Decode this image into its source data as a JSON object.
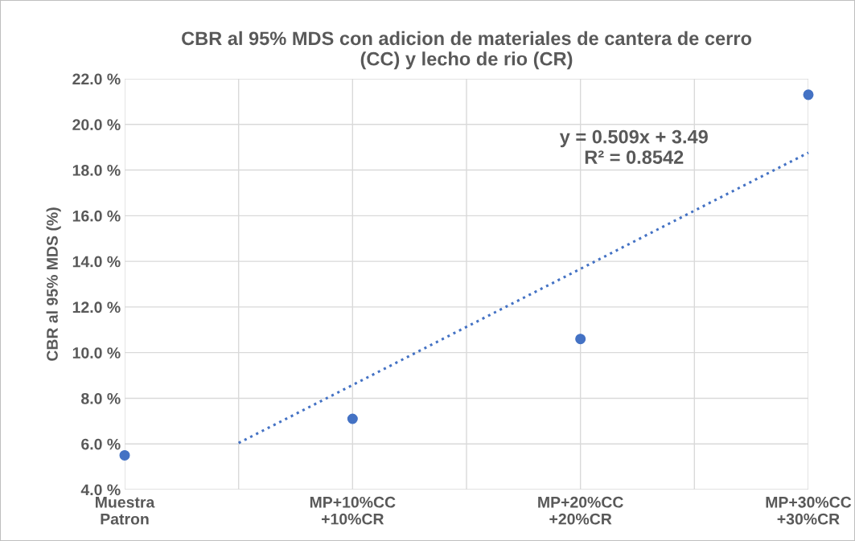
{
  "chart_data": {
    "type": "scatter",
    "title": "CBR al 95% MDS con adicion de materiales de cantera de cerro\n(CC) y lecho de rio (CR)",
    "ylabel": "CBR al 95% MDS (%)",
    "categories": [
      "Muestra\nPatron",
      null,
      "MP+10%CC\n+10%CR",
      null,
      "MP+20%CC\n+20%CR",
      null,
      "MP+30%CC\n+30%CR"
    ],
    "series": [
      {
        "color": "#4472c4",
        "marker": "circle",
        "values": [
          5.5,
          null,
          7.1,
          null,
          10.6,
          null,
          21.3
        ]
      },
      {
        "type": "line",
        "color": "#4472c4",
        "line_style": "dotted",
        "marker": "none",
        "values": [
          null,
          6.04,
          8.58,
          11.13,
          13.67,
          16.22,
          18.76
        ]
      }
    ],
    "ylim": [
      4,
      22
    ],
    "yticks": [
      {
        "value": 4,
        "label": "4.0 %"
      },
      {
        "value": 6,
        "label": "6.0 %"
      },
      {
        "value": 8,
        "label": "8.0 %"
      },
      {
        "value": 10,
        "label": "10.0 %"
      },
      {
        "value": 12,
        "label": "12.0 %"
      },
      {
        "value": 14,
        "label": "14.0 %"
      },
      {
        "value": 16,
        "label": "16.0 %"
      },
      {
        "value": 18,
        "label": "18.0 %"
      },
      {
        "value": 20,
        "label": "20.0 %"
      },
      {
        "value": 22,
        "label": "22.0 %"
      }
    ],
    "grid": true,
    "annotations": [
      "y = 0.509x + 3.49\nR² = 0.8542"
    ]
  }
}
